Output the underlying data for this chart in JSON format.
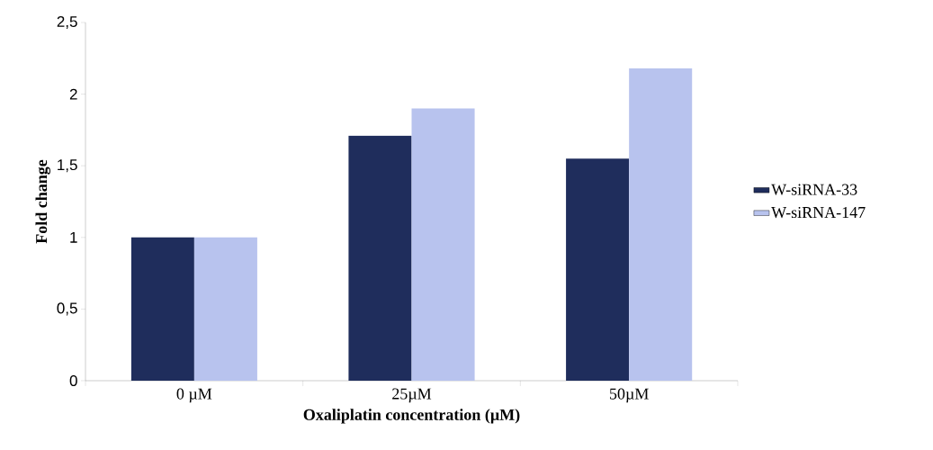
{
  "chart_data": {
    "type": "bar",
    "xlabel": "Oxaliplatin concentration (µM)",
    "ylabel": "Fold change",
    "categories": [
      "0 µM",
      "25µM",
      "50µM"
    ],
    "series": [
      {
        "name": "W-siRNA-33",
        "color": "#1f2d5c",
        "values": [
          1,
          1.71,
          1.55
        ]
      },
      {
        "name": "W-siRNA-147",
        "color": "#b8c3ee",
        "values": [
          1,
          1.9,
          2.18
        ]
      }
    ],
    "ylim": [
      0,
      2.5
    ],
    "yticks": [
      0,
      {
        "value": 0.5,
        "label": "0,5"
      },
      1,
      {
        "value": 1.5,
        "label": "1,5"
      },
      2,
      {
        "value": 2.5,
        "label": "2,5"
      }
    ],
    "grid": false,
    "legend": "right"
  }
}
